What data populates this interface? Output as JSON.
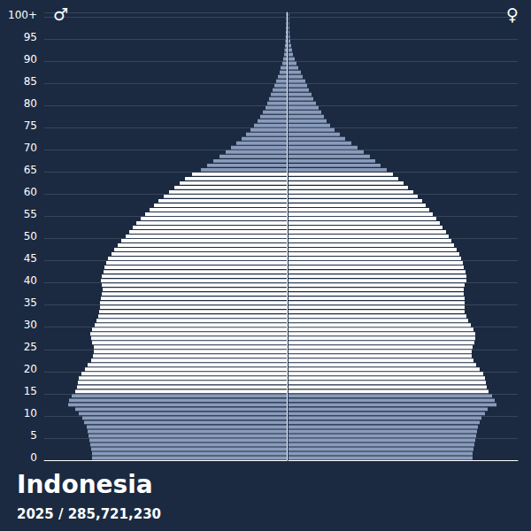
{
  "chart_data": {
    "type": "bar",
    "orientation": "horizontal",
    "title": "Indonesia",
    "subtitle": "2025 / 285,721,230",
    "grid": true,
    "tick_labels": "y",
    "categories": [
      "0",
      null,
      null,
      null,
      null,
      "5",
      null,
      null,
      null,
      null,
      "10",
      null,
      null,
      null,
      null,
      "15",
      null,
      null,
      null,
      null,
      "20",
      null,
      null,
      null,
      null,
      "25",
      null,
      null,
      null,
      null,
      "30",
      null,
      null,
      null,
      null,
      "35",
      null,
      null,
      null,
      null,
      "40",
      null,
      null,
      null,
      null,
      "45",
      null,
      null,
      null,
      null,
      "50",
      null,
      null,
      null,
      null,
      "55",
      null,
      null,
      null,
      null,
      "60",
      null,
      null,
      null,
      null,
      "65",
      null,
      null,
      null,
      null,
      "70",
      null,
      null,
      null,
      null,
      "75",
      null,
      null,
      null,
      null,
      "80",
      null,
      null,
      null,
      null,
      "85",
      null,
      null,
      null,
      null,
      "90",
      null,
      null,
      null,
      null,
      "95",
      null,
      null,
      null,
      null,
      "100+"
    ],
    "series": [
      {
        "name": "♂",
        "xlim": [
          0,
          3014000
        ],
        "values": [
          2420000,
          2420000,
          2431000,
          2442000,
          2453000,
          2464000,
          2475000,
          2486000,
          2519000,
          2541000,
          2585000,
          2629000,
          2717000,
          2706000,
          2673000,
          2629000,
          2607000,
          2596000,
          2585000,
          2552000,
          2508000,
          2475000,
          2431000,
          2409000,
          2398000,
          2398000,
          2420000,
          2431000,
          2442000,
          2420000,
          2387000,
          2365000,
          2343000,
          2332000,
          2321000,
          2321000,
          2310000,
          2299000,
          2288000,
          2299000,
          2310000,
          2299000,
          2277000,
          2266000,
          2244000,
          2222000,
          2178000,
          2145000,
          2101000,
          2057000,
          2002000,
          1958000,
          1914000,
          1870000,
          1815000,
          1760000,
          1705000,
          1650000,
          1595000,
          1529000,
          1463000,
          1397000,
          1331000,
          1265000,
          1177000,
          1067000,
          990000,
          913000,
          836000,
          759000,
          693000,
          627000,
          561000,
          506000,
          451000,
          407000,
          363000,
          330000,
          297000,
          264000,
          242000,
          220000,
          198000,
          176000,
          154000,
          132000,
          110000,
          88000,
          77000,
          55000,
          44000,
          33000,
          27500,
          22000,
          16500,
          13200,
          11000,
          8800,
          6600,
          5500,
          5500
        ],
        "colors": [
          "#8a9bbb",
          "#8a9bbb",
          "#8a9bbb",
          "#8a9bbb",
          "#8a9bbb",
          "#8a9bbb",
          "#8a9bbb",
          "#8a9bbb",
          "#8a9bbb",
          "#8a9bbb",
          "#8a9bbb",
          "#8a9bbb",
          "#8a9bbb",
          "#8a9bbb",
          "#8a9bbb",
          "#ffffff",
          "#ffffff",
          "#ffffff",
          "#ffffff",
          "#ffffff",
          "#ffffff",
          "#ffffff",
          "#ffffff",
          "#ffffff",
          "#ffffff",
          "#ffffff",
          "#ffffff",
          "#ffffff",
          "#ffffff",
          "#ffffff",
          "#ffffff",
          "#ffffff",
          "#ffffff",
          "#ffffff",
          "#ffffff",
          "#ffffff",
          "#ffffff",
          "#ffffff",
          "#ffffff",
          "#ffffff",
          "#ffffff",
          "#ffffff",
          "#ffffff",
          "#ffffff",
          "#ffffff",
          "#ffffff",
          "#ffffff",
          "#ffffff",
          "#ffffff",
          "#ffffff",
          "#ffffff",
          "#ffffff",
          "#ffffff",
          "#ffffff",
          "#ffffff",
          "#ffffff",
          "#ffffff",
          "#ffffff",
          "#ffffff",
          "#ffffff",
          "#ffffff",
          "#ffffff",
          "#ffffff",
          "#ffffff",
          "#ffffff",
          "#8a9bbb",
          "#8a9bbb",
          "#8a9bbb",
          "#8a9bbb",
          "#8a9bbb",
          "#8a9bbb",
          "#8a9bbb",
          "#8a9bbb",
          "#8a9bbb",
          "#8a9bbb",
          "#8a9bbb",
          "#8a9bbb",
          "#8a9bbb",
          "#8a9bbb",
          "#8a9bbb",
          "#8a9bbb",
          "#8a9bbb",
          "#8a9bbb",
          "#8a9bbb",
          "#8a9bbb",
          "#8a9bbb",
          "#8a9bbb",
          "#8a9bbb",
          "#8a9bbb",
          "#8a9bbb",
          "#8a9bbb",
          "#8a9bbb",
          "#8a9bbb",
          "#8a9bbb",
          "#8a9bbb",
          "#8a9bbb",
          "#8a9bbb",
          "#8a9bbb",
          "#8a9bbb",
          "#8a9bbb",
          "#8a9bbb"
        ]
      },
      {
        "name": "♀",
        "xlim": [
          0,
          2849000
        ],
        "values": [
          2288000,
          2288000,
          2299000,
          2310000,
          2321000,
          2332000,
          2343000,
          2354000,
          2376000,
          2398000,
          2442000,
          2475000,
          2585000,
          2563000,
          2530000,
          2486000,
          2464000,
          2453000,
          2442000,
          2420000,
          2376000,
          2332000,
          2299000,
          2277000,
          2277000,
          2288000,
          2310000,
          2321000,
          2321000,
          2299000,
          2266000,
          2233000,
          2211000,
          2189000,
          2189000,
          2189000,
          2189000,
          2178000,
          2178000,
          2189000,
          2211000,
          2211000,
          2200000,
          2178000,
          2167000,
          2145000,
          2123000,
          2090000,
          2057000,
          2024000,
          1991000,
          1958000,
          1914000,
          1881000,
          1837000,
          1793000,
          1749000,
          1705000,
          1661000,
          1606000,
          1551000,
          1485000,
          1430000,
          1364000,
          1298000,
          1221000,
          1144000,
          1078000,
          1012000,
          935000,
          858000,
          781000,
          704000,
          638000,
          572000,
          517000,
          473000,
          440000,
          407000,
          374000,
          341000,
          308000,
          286000,
          253000,
          231000,
          209000,
          176000,
          154000,
          121000,
          99000,
          77000,
          55000,
          44000,
          33000,
          22000,
          16500,
          13200,
          11000,
          8800,
          6600,
          6600
        ],
        "colors": [
          "#8a9bbb",
          "#8a9bbb",
          "#8a9bbb",
          "#8a9bbb",
          "#8a9bbb",
          "#8a9bbb",
          "#8a9bbb",
          "#8a9bbb",
          "#8a9bbb",
          "#8a9bbb",
          "#8a9bbb",
          "#8a9bbb",
          "#8a9bbb",
          "#8a9bbb",
          "#8a9bbb",
          "#ffffff",
          "#ffffff",
          "#ffffff",
          "#ffffff",
          "#ffffff",
          "#ffffff",
          "#ffffff",
          "#ffffff",
          "#ffffff",
          "#ffffff",
          "#ffffff",
          "#ffffff",
          "#ffffff",
          "#ffffff",
          "#ffffff",
          "#ffffff",
          "#ffffff",
          "#ffffff",
          "#ffffff",
          "#ffffff",
          "#ffffff",
          "#ffffff",
          "#ffffff",
          "#ffffff",
          "#ffffff",
          "#ffffff",
          "#ffffff",
          "#ffffff",
          "#ffffff",
          "#ffffff",
          "#ffffff",
          "#ffffff",
          "#ffffff",
          "#ffffff",
          "#ffffff",
          "#ffffff",
          "#ffffff",
          "#ffffff",
          "#ffffff",
          "#ffffff",
          "#ffffff",
          "#ffffff",
          "#ffffff",
          "#ffffff",
          "#ffffff",
          "#ffffff",
          "#ffffff",
          "#ffffff",
          "#ffffff",
          "#ffffff",
          "#8a9bbb",
          "#8a9bbb",
          "#8a9bbb",
          "#8a9bbb",
          "#8a9bbb",
          "#8a9bbb",
          "#8a9bbb",
          "#8a9bbb",
          "#8a9bbb",
          "#8a9bbb",
          "#8a9bbb",
          "#8a9bbb",
          "#8a9bbb",
          "#8a9bbb",
          "#8a9bbb",
          "#8a9bbb",
          "#8a9bbb",
          "#8a9bbb",
          "#8a9bbb",
          "#8a9bbb",
          "#8a9bbb",
          "#8a9bbb",
          "#8a9bbb",
          "#8a9bbb",
          "#8a9bbb",
          "#8a9bbb",
          "#8a9bbb",
          "#8a9bbb",
          "#8a9bbb",
          "#8a9bbb",
          "#8a9bbb",
          "#8a9bbb",
          "#8a9bbb",
          "#8a9bbb",
          "#8a9bbb",
          "#8a9bbb"
        ]
      }
    ]
  }
}
